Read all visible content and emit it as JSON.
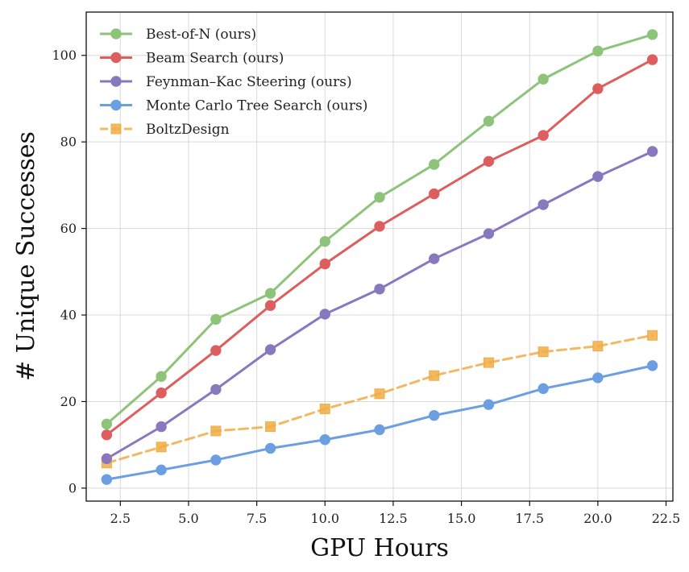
{
  "chart_data": {
    "type": "line",
    "title": "",
    "xlabel": "GPU Hours",
    "ylabel": "# Unique Successes",
    "xlim": [
      1.25,
      22.75
    ],
    "ylim": [
      -3,
      110
    ],
    "xticks": [
      2.5,
      5.0,
      7.5,
      10.0,
      12.5,
      15.0,
      17.5,
      20.0,
      22.5
    ],
    "xtick_labels": [
      "2.5",
      "5.0",
      "7.5",
      "10.0",
      "12.5",
      "15.0",
      "17.5",
      "20.0",
      "22.5"
    ],
    "yticks": [
      0,
      20,
      40,
      60,
      80,
      100
    ],
    "ytick_labels": [
      "0",
      "20",
      "40",
      "60",
      "80",
      "100"
    ],
    "grid": true,
    "legend_position": "top-left",
    "x": [
      2,
      4,
      6,
      8,
      10,
      12,
      14,
      16,
      18,
      20,
      22
    ],
    "series": [
      {
        "name": "Best-of-N (ours)",
        "color": "#8dc47a",
        "marker": "circle",
        "dashed": false,
        "values": [
          14.8,
          25.8,
          39.0,
          45.0,
          57.0,
          67.2,
          74.8,
          84.8,
          94.5,
          101.0,
          104.8
        ]
      },
      {
        "name": "Beam Search (ours)",
        "color": "#dc5e5e",
        "marker": "circle",
        "dashed": false,
        "values": [
          12.3,
          22.0,
          31.8,
          42.2,
          51.8,
          60.5,
          68.0,
          75.5,
          81.5,
          92.3,
          99.0
        ]
      },
      {
        "name": "Feynman–Kac Steering (ours)",
        "color": "#8a78bf",
        "marker": "circle",
        "dashed": false,
        "values": [
          6.8,
          14.2,
          22.8,
          32.0,
          40.2,
          46.0,
          53.0,
          58.8,
          65.5,
          72.0,
          77.8
        ]
      },
      {
        "name": "Monte Carlo Tree Search (ours)",
        "color": "#6b9fe2",
        "marker": "circle",
        "dashed": false,
        "values": [
          2.0,
          4.2,
          6.5,
          9.2,
          11.2,
          13.5,
          16.8,
          19.3,
          23.0,
          25.5,
          28.3
        ]
      },
      {
        "name": "BoltzDesign",
        "color": "#f0ad45",
        "marker": "square",
        "dashed": true,
        "values": [
          5.8,
          9.5,
          13.2,
          14.2,
          18.3,
          21.8,
          26.0,
          29.0,
          31.5,
          32.8,
          35.3
        ]
      }
    ]
  }
}
